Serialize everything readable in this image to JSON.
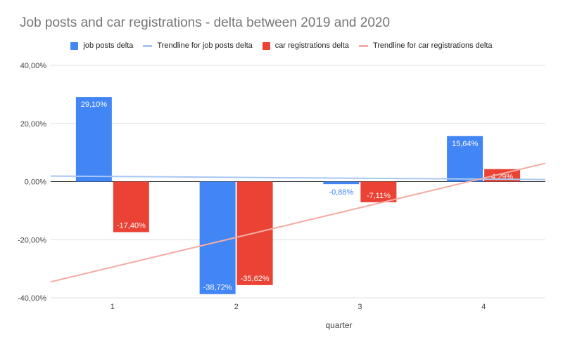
{
  "chart_data": {
    "type": "bar",
    "title": "Job posts and car registrations - delta between 2019 and 2020",
    "xlabel": "quarter",
    "ylabel": "",
    "categories": [
      "1",
      "2",
      "3",
      "4"
    ],
    "ylim": [
      -40,
      40
    ],
    "yticks": [
      40,
      20,
      0,
      -20,
      -40
    ],
    "ytick_labels": [
      "40,00%",
      "20,00%",
      "0,00%",
      "-20,00%",
      "-40,00%"
    ],
    "grid": true,
    "legend_position": "top",
    "legend": [
      "job posts delta",
      "Trendline for job posts delta",
      "car registrations delta",
      "Trendline for car registrations delta"
    ],
    "series": [
      {
        "name": "job posts delta",
        "color": "#4285f4",
        "values": [
          29.1,
          -38.72,
          -0.88,
          15.64
        ],
        "labels": [
          "29,10%",
          "-38,72%",
          "-0,88%",
          "15,64%"
        ],
        "trendline": {
          "name": "Trendline for job posts delta",
          "color": "#a7c7f2",
          "start": 1.9,
          "end": 0.7
        }
      },
      {
        "name": "car registrations delta",
        "color": "#ea4335",
        "values": [
          -17.4,
          -35.62,
          -7.11,
          4.29
        ],
        "labels": [
          "-17,40%",
          "-35,62%",
          "-7,11%",
          "4,29%"
        ],
        "trendline": {
          "name": "Trendline for car registrations delta",
          "color": "#f4aca4",
          "start": -34.5,
          "end": 6.3
        }
      }
    ]
  }
}
